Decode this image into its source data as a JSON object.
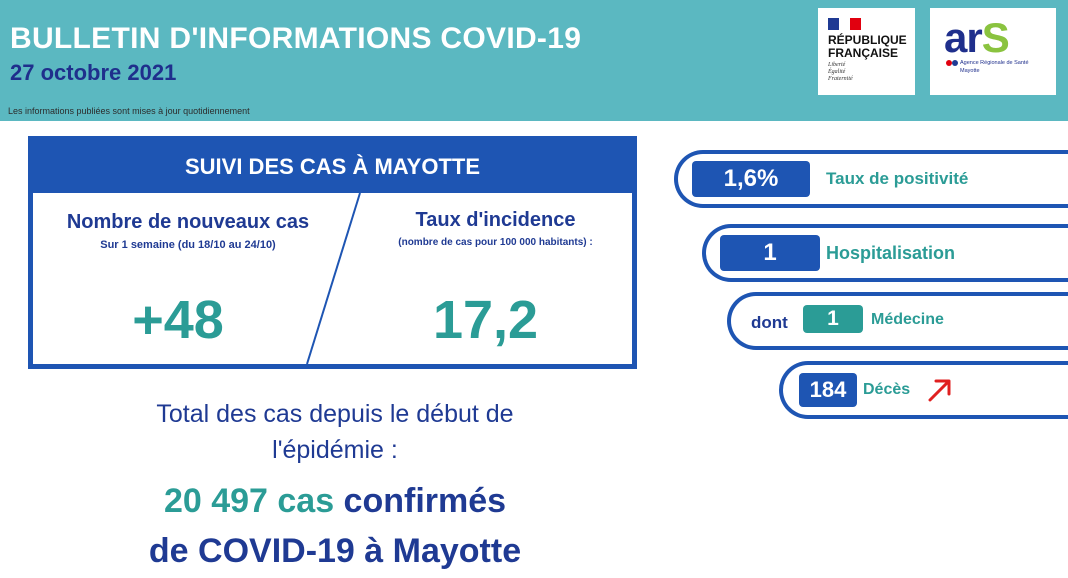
{
  "header": {
    "title": "BULLETIN D'INFORMATIONS COVID-19",
    "date": "27 octobre 2021",
    "note": "Les informations publiées sont mises à jour quotidiennement"
  },
  "logos": {
    "republique": {
      "name_line1": "RÉPUBLIQUE",
      "name_line2": "FRANÇAISE",
      "motto": [
        "Liberté",
        "Égalité",
        "Fraternité"
      ]
    },
    "ars": {
      "word_main": "ar",
      "word_accent": "S",
      "line1": "Agence Régionale de Santé",
      "line2": "Mayotte"
    }
  },
  "cases": {
    "panel_title": "SUIVI DES CAS À MAYOTTE",
    "new_cases": {
      "label": "Nombre de nouveaux cas",
      "sublabel": "Sur 1 semaine (du 18/10 au 24/10)",
      "value": "+48"
    },
    "incidence": {
      "label": "Taux d'incidence",
      "sublabel": "(nombre de cas pour 100 000 habitants) :",
      "value": "17,2"
    }
  },
  "total": {
    "line1": "Total des cas depuis le début de",
    "line2": "l'épidémie :",
    "count": "20 497 cas",
    "suffix": " confirmés",
    "line4": "de COVID-19 à Mayotte"
  },
  "indicators": {
    "positivity": {
      "value": "1,6%",
      "label": "Taux de positivité"
    },
    "hospitalisation": {
      "value": "1",
      "label": "Hospitalisation"
    },
    "medecine": {
      "prefix": "dont",
      "value": "1",
      "label": "Médecine"
    },
    "deces": {
      "value": "184",
      "label": "Décès",
      "trend": "up"
    }
  },
  "colors": {
    "header_bg": "#5bb8c1",
    "primary_blue": "#1e55b3",
    "text_blue": "#1f3a93",
    "teal": "#2b9c96",
    "trend_red": "#e02020"
  }
}
